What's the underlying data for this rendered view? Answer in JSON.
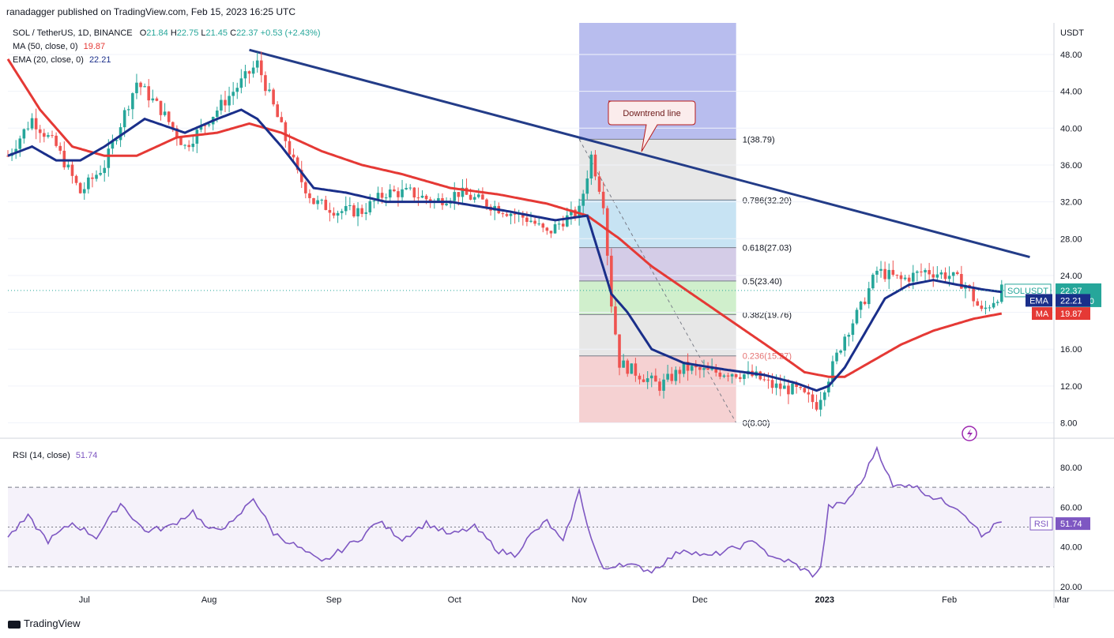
{
  "publisher_line": "ranadagger published on TradingView.com, Feb 15, 2023 16:25 UTC",
  "header": {
    "symbol": "SOL / TetherUS, 1D, BINANCE",
    "ohlc": {
      "o_label": "O",
      "o": "21.84",
      "h_label": "H",
      "h": "22.75",
      "l_label": "L",
      "l": "21.45",
      "c_label": "C",
      "c": "22.37",
      "change": "+0.53 (+2.43%)"
    },
    "ma_label": "MA (50, close, 0)",
    "ma_value": "19.87",
    "ema_label": "EMA (20, close, 0)",
    "ema_value": "22.21",
    "rsi_label": "RSI (14, close)",
    "rsi_value": "51.74"
  },
  "axis": {
    "unit": "USDT",
    "price_ticks": [
      "48.00",
      "44.00",
      "40.00",
      "36.00",
      "32.00",
      "28.00",
      "24.00",
      "20.00",
      "16.00",
      "12.00",
      "8.00"
    ],
    "rsi_ticks": [
      "80.00",
      "60.00",
      "40.00",
      "20.00"
    ],
    "time_labels": [
      "Jul",
      "Aug",
      "Sep",
      "Oct",
      "Nov",
      "Dec",
      "2023",
      "Feb",
      "Mar"
    ]
  },
  "price_badges": {
    "symbol": "SOLUSDT",
    "price": "22.37",
    "countdown": "07:34:10",
    "ema_tag": "EMA",
    "ema": "22.21",
    "ma_tag": "MA",
    "ma": "19.87",
    "rsi_tag": "RSI",
    "rsi": "51.74"
  },
  "annotation": {
    "text": "Downtrend line"
  },
  "fib_levels": [
    {
      "label": "1(38.79)",
      "price": 38.79
    },
    {
      "label": "0.786(32.20)",
      "price": 32.2
    },
    {
      "label": "0.618(27.03)",
      "price": 27.03
    },
    {
      "label": "0.5(23.40)",
      "price": 23.4
    },
    {
      "label": "0.382(19.76)",
      "price": 19.76
    },
    {
      "label": "0.236(15.27)",
      "price": 15.27
    },
    {
      "label": "0(8.00)",
      "price": 8.0
    }
  ],
  "footer": {
    "brand": "TradingView"
  },
  "colors": {
    "up": "#26a69a",
    "down": "#ef5350",
    "ema": "#1a2f8a",
    "ma": "#e53935",
    "trend": "#233c88",
    "rsi": "#7e57c2"
  },
  "chart_data": {
    "type": "candlestick",
    "price_range": [
      8,
      48
    ],
    "rsi_range": [
      20,
      80
    ],
    "time_range_days": [
      0,
      260
    ],
    "month_day_index": {
      "Jul": 19,
      "Aug": 50,
      "Sep": 81,
      "Oct": 111,
      "Nov": 142,
      "Dec": 172,
      "2023": 203,
      "Feb": 234,
      "Mar": 262
    },
    "close_waypoints": [
      [
        0,
        37
      ],
      [
        6,
        41
      ],
      [
        12,
        38
      ],
      [
        18,
        33
      ],
      [
        24,
        36
      ],
      [
        32,
        45
      ],
      [
        38,
        42
      ],
      [
        44,
        38
      ],
      [
        50,
        41
      ],
      [
        56,
        44
      ],
      [
        62,
        47
      ],
      [
        68,
        40
      ],
      [
        72,
        35
      ],
      [
        76,
        32
      ],
      [
        82,
        31
      ],
      [
        88,
        31
      ],
      [
        94,
        33
      ],
      [
        100,
        33
      ],
      [
        106,
        32
      ],
      [
        112,
        33
      ],
      [
        118,
        32
      ],
      [
        124,
        31
      ],
      [
        130,
        30
      ],
      [
        134,
        28.5
      ],
      [
        138,
        30
      ],
      [
        142,
        31
      ],
      [
        145,
        37
      ],
      [
        148,
        32
      ],
      [
        150,
        21
      ],
      [
        152,
        14.5
      ],
      [
        156,
        13.5
      ],
      [
        162,
        12
      ],
      [
        168,
        14
      ],
      [
        174,
        13.5
      ],
      [
        180,
        13.5
      ],
      [
        186,
        13
      ],
      [
        190,
        12
      ],
      [
        196,
        11.5
      ],
      [
        201,
        10
      ],
      [
        204,
        13
      ],
      [
        208,
        17.5
      ],
      [
        212,
        20.5
      ],
      [
        216,
        24.5
      ],
      [
        222,
        23.5
      ],
      [
        228,
        24.5
      ],
      [
        234,
        24
      ],
      [
        238,
        23
      ],
      [
        242,
        20
      ],
      [
        246,
        21.8
      ],
      [
        247,
        22.37
      ]
    ],
    "rsi_waypoints": [
      [
        0,
        45
      ],
      [
        5,
        55
      ],
      [
        10,
        43
      ],
      [
        16,
        52
      ],
      [
        22,
        45
      ],
      [
        28,
        62
      ],
      [
        34,
        48
      ],
      [
        40,
        50
      ],
      [
        46,
        58
      ],
      [
        50,
        48
      ],
      [
        56,
        52
      ],
      [
        61,
        65
      ],
      [
        66,
        47
      ],
      [
        72,
        40
      ],
      [
        78,
        32
      ],
      [
        84,
        40
      ],
      [
        88,
        45
      ],
      [
        92,
        53
      ],
      [
        98,
        44
      ],
      [
        104,
        52
      ],
      [
        110,
        46
      ],
      [
        116,
        50
      ],
      [
        122,
        38
      ],
      [
        126,
        36
      ],
      [
        130,
        46
      ],
      [
        134,
        53
      ],
      [
        138,
        42
      ],
      [
        142,
        68
      ],
      [
        145,
        44
      ],
      [
        148,
        28
      ],
      [
        152,
        32
      ],
      [
        160,
        28
      ],
      [
        168,
        39
      ],
      [
        174,
        35
      ],
      [
        180,
        39
      ],
      [
        186,
        43
      ],
      [
        190,
        34
      ],
      [
        194,
        33
      ],
      [
        200,
        26
      ],
      [
        202,
        29
      ],
      [
        204,
        60
      ],
      [
        208,
        62
      ],
      [
        212,
        72
      ],
      [
        216,
        90
      ],
      [
        220,
        70
      ],
      [
        224,
        72
      ],
      [
        230,
        65
      ],
      [
        236,
        60
      ],
      [
        240,
        52
      ],
      [
        242,
        45
      ],
      [
        246,
        52
      ],
      [
        247,
        51.74
      ]
    ],
    "ema20_waypoints": [
      [
        0,
        37
      ],
      [
        6,
        38
      ],
      [
        12,
        36.5
      ],
      [
        18,
        36.5
      ],
      [
        24,
        38
      ],
      [
        34,
        41
      ],
      [
        44,
        39.5
      ],
      [
        52,
        41
      ],
      [
        58,
        42
      ],
      [
        62,
        41
      ],
      [
        68,
        38
      ],
      [
        76,
        33.5
      ],
      [
        84,
        33
      ],
      [
        94,
        32
      ],
      [
        110,
        32
      ],
      [
        124,
        31
      ],
      [
        136,
        30
      ],
      [
        144,
        30.5
      ],
      [
        150,
        22
      ],
      [
        154,
        20
      ],
      [
        160,
        16
      ],
      [
        168,
        14.5
      ],
      [
        178,
        13.8
      ],
      [
        188,
        13.2
      ],
      [
        196,
        12.3
      ],
      [
        201,
        11.5
      ],
      [
        204,
        12
      ],
      [
        208,
        14
      ],
      [
        212,
        17
      ],
      [
        218,
        21.5
      ],
      [
        224,
        23
      ],
      [
        230,
        23.5
      ],
      [
        236,
        23
      ],
      [
        242,
        22.5
      ],
      [
        247,
        22.21
      ]
    ],
    "ma50_waypoints": [
      [
        0,
        47.5
      ],
      [
        8,
        42
      ],
      [
        16,
        38
      ],
      [
        24,
        37
      ],
      [
        32,
        37
      ],
      [
        42,
        39
      ],
      [
        52,
        39.5
      ],
      [
        60,
        40.5
      ],
      [
        68,
        39.5
      ],
      [
        78,
        37.5
      ],
      [
        88,
        36
      ],
      [
        98,
        35
      ],
      [
        110,
        33.5
      ],
      [
        122,
        32.8
      ],
      [
        134,
        31.8
      ],
      [
        144,
        30.5
      ],
      [
        152,
        28
      ],
      [
        160,
        25
      ],
      [
        170,
        22
      ],
      [
        180,
        19
      ],
      [
        190,
        16
      ],
      [
        198,
        13.5
      ],
      [
        204,
        13
      ],
      [
        208,
        13
      ],
      [
        214,
        14.5
      ],
      [
        222,
        16.5
      ],
      [
        230,
        18
      ],
      [
        240,
        19.3
      ],
      [
        247,
        19.87
      ]
    ],
    "trend_line": [
      [
        60,
        48.5
      ],
      [
        254,
        26
      ]
    ],
    "fib_box": {
      "start_day": 142,
      "end_day": 181,
      "high": 38.79,
      "low": 8.0
    },
    "dashed_retrace": [
      [
        142,
        38.79
      ],
      [
        181,
        8.0
      ]
    ]
  }
}
